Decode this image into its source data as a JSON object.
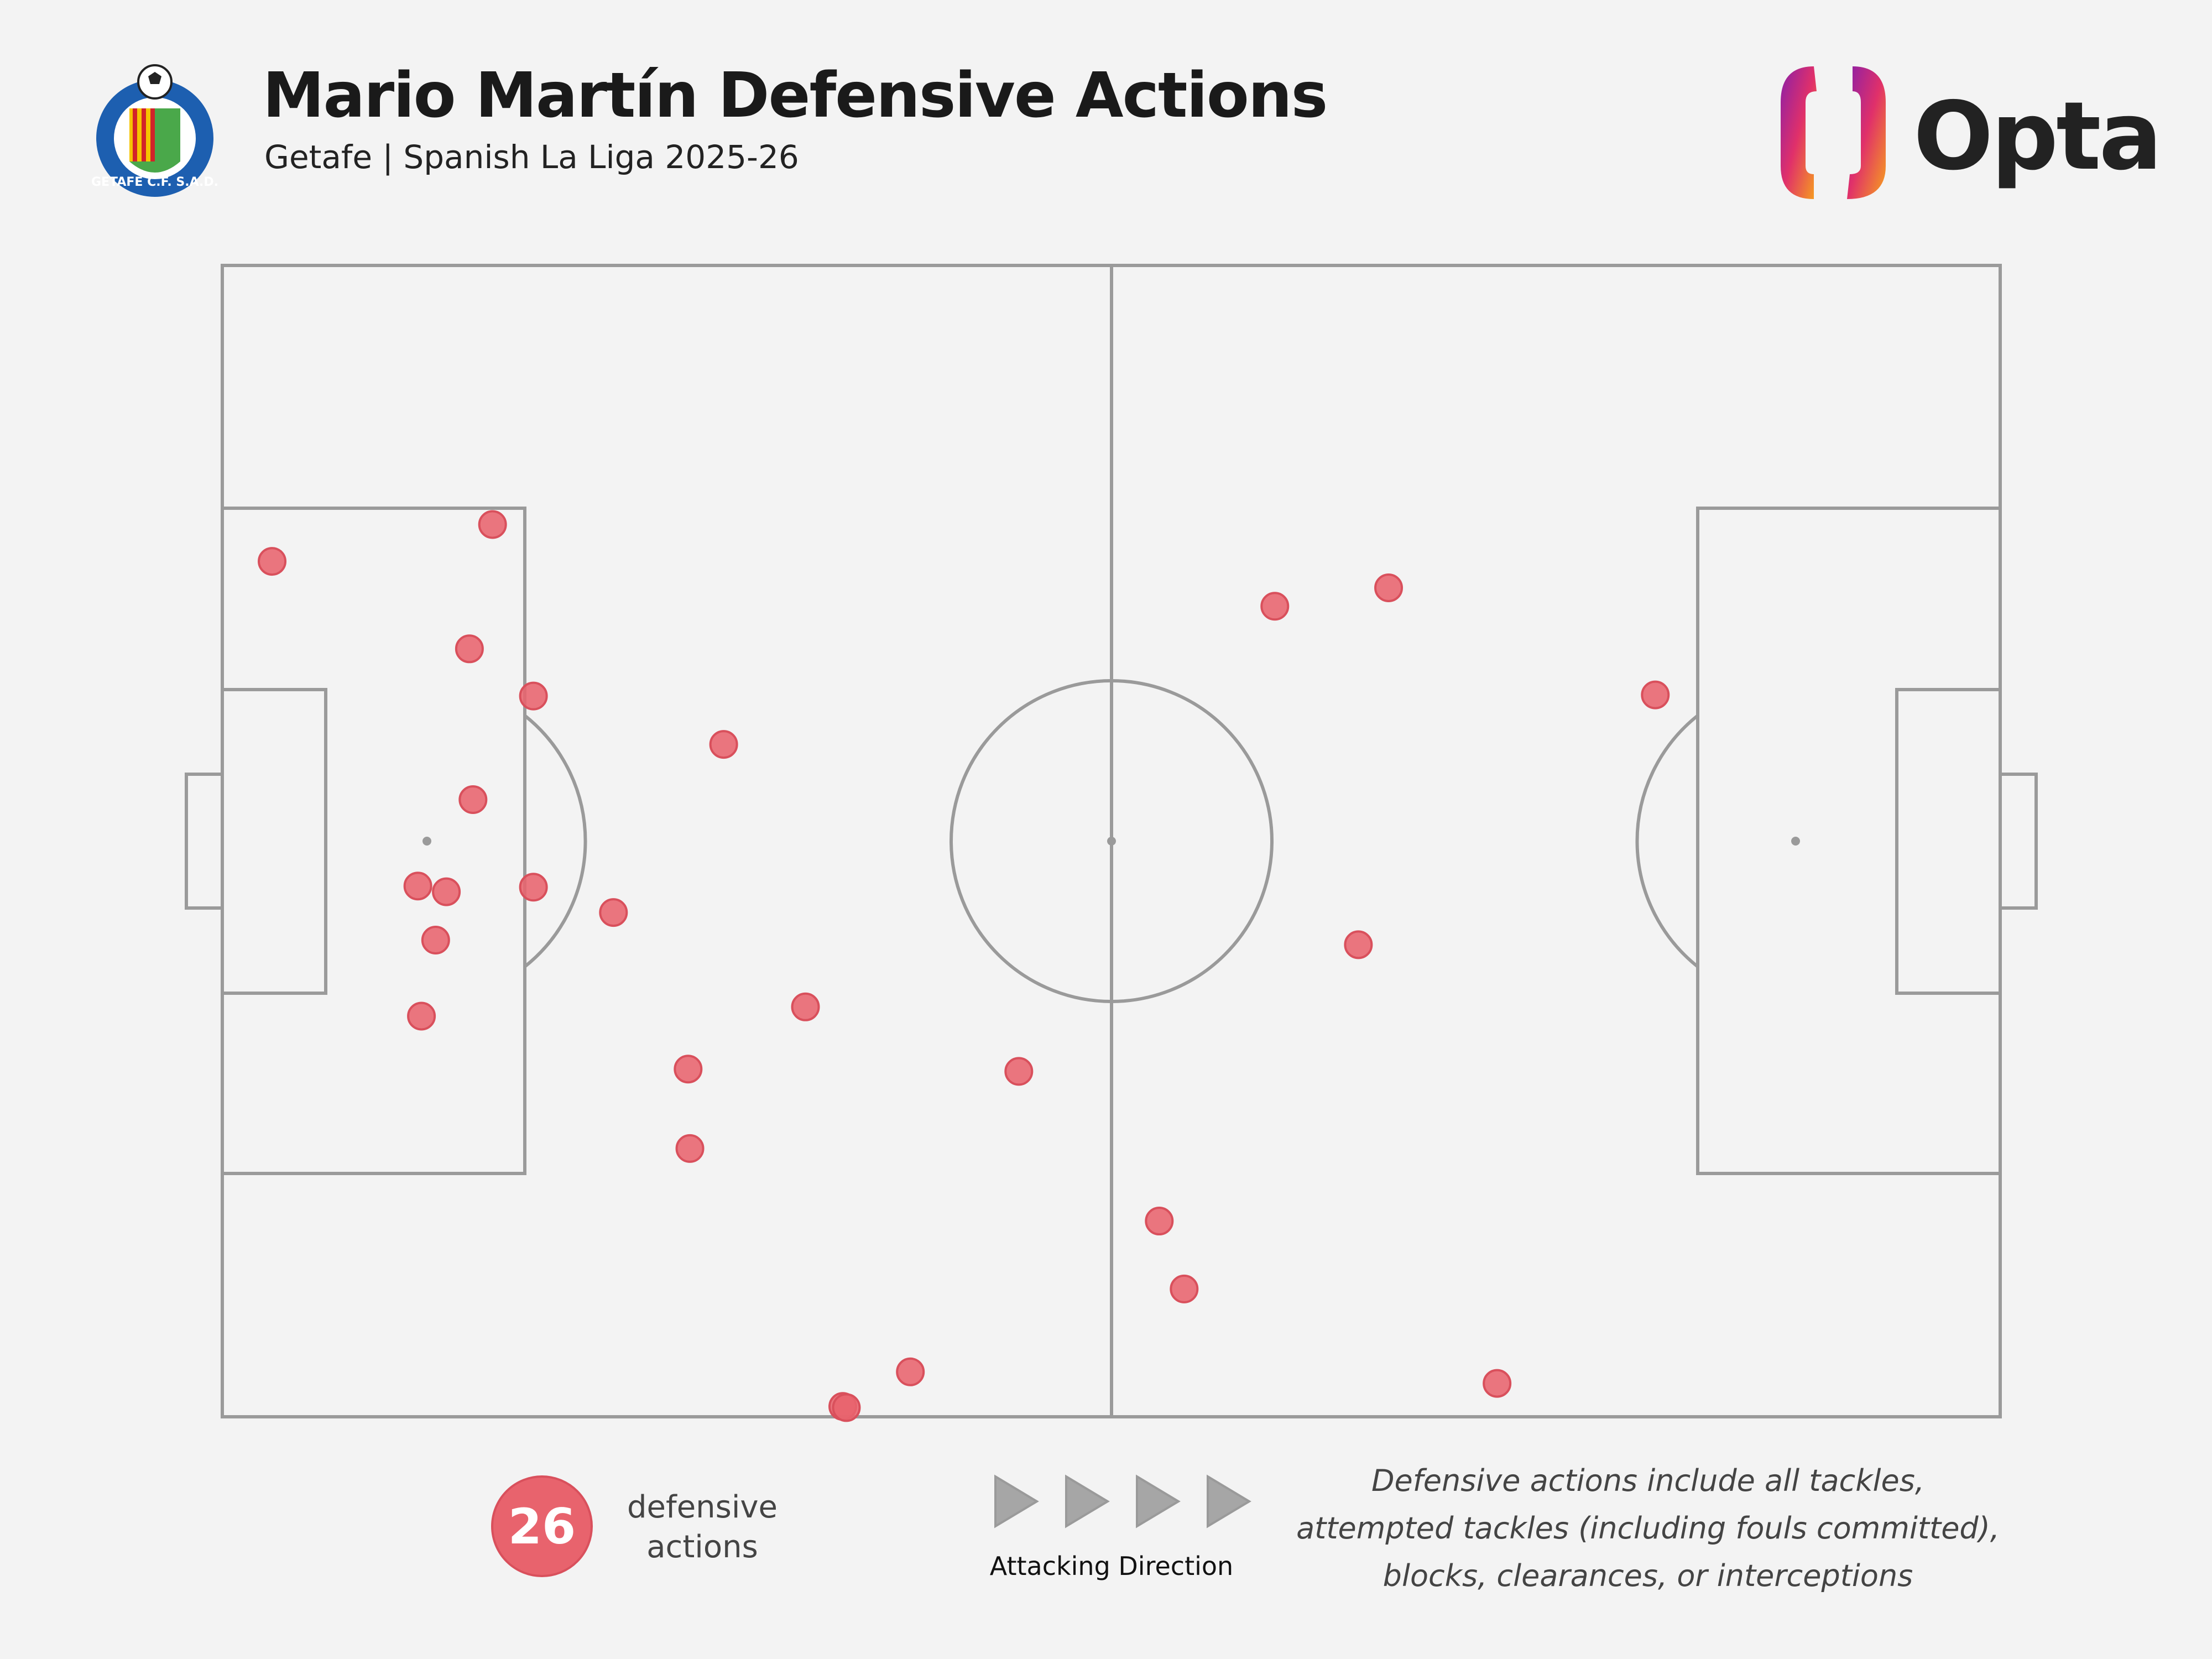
{
  "header": {
    "title": "Mario Martín Defensive Actions",
    "subtitle": "Getafe | Spanish La Liga 2025-26",
    "crest_text": "GETAFE C.F. S.A.D.",
    "brand": "Opta"
  },
  "legend": {
    "count": "26",
    "label_line1": "defensive",
    "label_line2": "actions",
    "direction_label": "Attacking Direction"
  },
  "note": {
    "line1": "Defensive actions include all tackles,",
    "line2": "attempted tackles (including fouls committed),",
    "line3": "blocks, clearances, or interceptions"
  },
  "colors": {
    "background": "#f3f3f3",
    "pitch_lines": "#9a9a9a",
    "marker_fill": "#e8636d",
    "marker_stroke": "#d9505c",
    "crest_blue": "#1d5fb0",
    "crest_red": "#d2232a",
    "crest_yellow": "#f5c400",
    "crest_green": "#4aa84a"
  },
  "chart_data": {
    "type": "scatter",
    "title": "Mario Martín Defensive Actions",
    "pitch": {
      "length": 100,
      "width": 100,
      "attacking_direction": "left-to-right"
    },
    "xlim": [
      0,
      100
    ],
    "ylim": [
      0,
      100
    ],
    "grid": false,
    "legend_placement": "bottom",
    "points": [
      {
        "x": 2.8,
        "y": 74.3
      },
      {
        "x": 15.2,
        "y": 77.5
      },
      {
        "x": 13.9,
        "y": 66.7
      },
      {
        "x": 17.5,
        "y": 62.6
      },
      {
        "x": 28.2,
        "y": 58.4
      },
      {
        "x": 14.1,
        "y": 53.6
      },
      {
        "x": 11.0,
        "y": 46.1
      },
      {
        "x": 12.6,
        "y": 45.6
      },
      {
        "x": 17.5,
        "y": 46.0
      },
      {
        "x": 22.0,
        "y": 43.8
      },
      {
        "x": 12.0,
        "y": 41.4
      },
      {
        "x": 11.2,
        "y": 34.8
      },
      {
        "x": 32.8,
        "y": 35.6
      },
      {
        "x": 26.2,
        "y": 30.2
      },
      {
        "x": 26.3,
        "y": 23.3
      },
      {
        "x": 44.8,
        "y": 30.0
      },
      {
        "x": 38.7,
        "y": 3.9
      },
      {
        "x": 34.9,
        "y": 0.9
      },
      {
        "x": 35.1,
        "y": 0.8
      },
      {
        "x": 59.2,
        "y": 70.4
      },
      {
        "x": 65.6,
        "y": 72.0
      },
      {
        "x": 80.6,
        "y": 62.7
      },
      {
        "x": 63.9,
        "y": 41.0
      },
      {
        "x": 52.7,
        "y": 17.0
      },
      {
        "x": 54.1,
        "y": 11.1
      },
      {
        "x": 71.7,
        "y": 2.9
      }
    ]
  }
}
